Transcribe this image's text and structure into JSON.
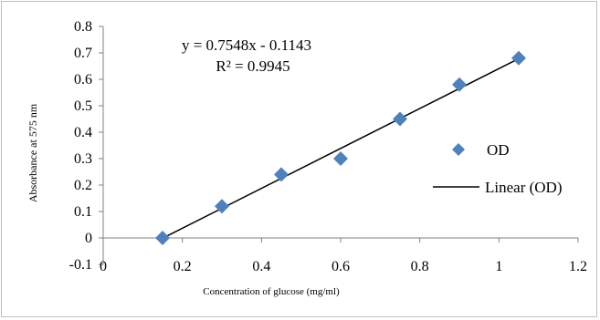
{
  "chart_data": {
    "type": "scatter",
    "xlabel": "Concentration of glucose (mg/ml)",
    "ylabel": "Absorbance at 575 nm",
    "xlim": [
      0,
      1.2
    ],
    "ylim": [
      -0.1,
      0.8
    ],
    "x_ticks": [
      "0",
      "0.2",
      "0.4",
      "0.6",
      "0.8",
      "1",
      "1.2"
    ],
    "y_ticks": [
      "-0.1",
      "0",
      "0.1",
      "0.2",
      "0.3",
      "0.4",
      "0.5",
      "0.6",
      "0.7",
      "0.8"
    ],
    "grid": false,
    "legend_position": "right",
    "series": [
      {
        "name": "OD",
        "marker": "diamond",
        "color": "#4f81bd",
        "x": [
          0.15,
          0.3,
          0.45,
          0.6,
          0.75,
          0.9,
          1.05
        ],
        "y": [
          0.0,
          0.12,
          0.24,
          0.3,
          0.45,
          0.58,
          0.68
        ]
      }
    ],
    "trendline": {
      "name": "Linear (OD)",
      "color": "#000000",
      "slope": 0.7548,
      "intercept": -0.1143,
      "x_range": [
        0.15,
        1.05
      ]
    },
    "annotations": {
      "equation": "y = 0.7548x - 0.1143",
      "r_squared": "R² = 0.9945"
    }
  }
}
